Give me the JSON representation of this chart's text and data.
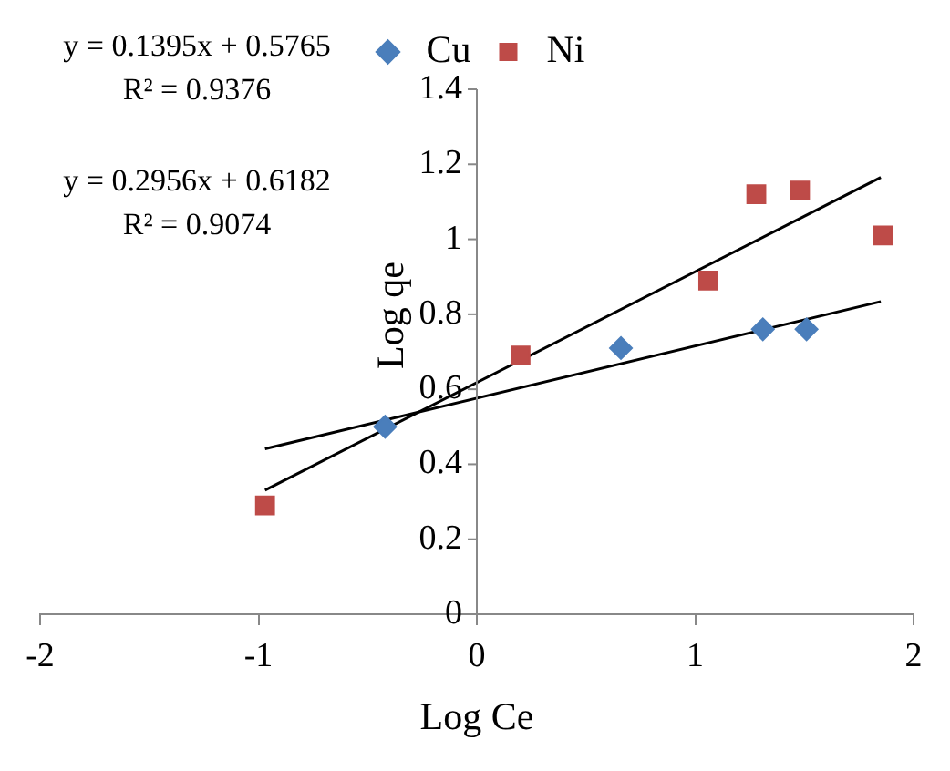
{
  "chart_data": {
    "type": "scatter",
    "xlabel": "Log Ce",
    "ylabel": "Log qe",
    "annotations": [
      "y = 0.1395x + 0.5765",
      "R² = 0.9376",
      "y = 0.2956x + 0.6182",
      "R² = 0.9074"
    ],
    "series": [
      {
        "name": "Cu",
        "type": "scatter",
        "marker": "diamond",
        "color": "#4a7ebb",
        "x": [
          -0.42,
          0.66,
          1.31,
          1.51
        ],
        "values": [
          0.5,
          0.71,
          0.76,
          0.76
        ]
      },
      {
        "name": "Ni",
        "type": "scatter",
        "marker": "square",
        "color": "#be4b48",
        "x": [
          -0.97,
          0.2,
          1.06,
          1.28,
          1.48,
          1.86
        ],
        "values": [
          0.29,
          0.69,
          0.89,
          1.12,
          1.13,
          1.01
        ]
      },
      {
        "type": "line",
        "marker": "none",
        "color": "#000000",
        "x": [
          -0.97,
          1.85
        ],
        "values": [
          0.441,
          0.834
        ]
      },
      {
        "type": "line",
        "marker": "none",
        "color": "#000000",
        "x": [
          -0.97,
          1.85
        ],
        "values": [
          0.331,
          1.165
        ]
      }
    ],
    "xlim": [
      -2,
      2
    ],
    "xticks": [
      -2,
      -1,
      0,
      1,
      2
    ],
    "ylim": [
      0,
      1.4
    ],
    "yticks": [
      0,
      0.2,
      0.4,
      0.6,
      0.8,
      1,
      1.2,
      1.4
    ],
    "grid": false,
    "legend": "top"
  }
}
